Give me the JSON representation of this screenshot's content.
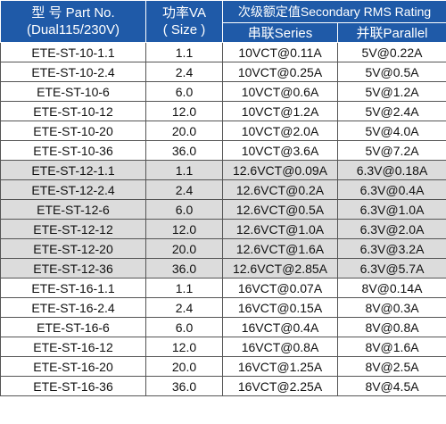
{
  "header": {
    "model_line1": "型 号 Part No.",
    "model_line2": "(Dual115/230V)",
    "power_line1": "功率VA",
    "power_line2": "( Size )",
    "secondary": "次级额定值Secondary RMS Rating",
    "series": "串联Series",
    "parallel": "并联Parallel"
  },
  "rows": [
    {
      "part": "ETE-ST-10-1.1",
      "va": "1.1",
      "series": "10VCT@0.11A",
      "parallel": "5V@0.22A",
      "band": "white"
    },
    {
      "part": "ETE-ST-10-2.4",
      "va": "2.4",
      "series": "10VCT@0.25A",
      "parallel": "5V@0.5A",
      "band": "white"
    },
    {
      "part": "ETE-ST-10-6",
      "va": "6.0",
      "series": "10VCT@0.6A",
      "parallel": "5V@1.2A",
      "band": "white"
    },
    {
      "part": "ETE-ST-10-12",
      "va": "12.0",
      "series": "10VCT@1.2A",
      "parallel": "5V@2.4A",
      "band": "white"
    },
    {
      "part": "ETE-ST-10-20",
      "va": "20.0",
      "series": "10VCT@2.0A",
      "parallel": "5V@4.0A",
      "band": "white"
    },
    {
      "part": "ETE-ST-10-36",
      "va": "36.0",
      "series": "10VCT@3.6A",
      "parallel": "5V@7.2A",
      "band": "white"
    },
    {
      "part": "ETE-ST-12-1.1",
      "va": "1.1",
      "series": "12.6VCT@0.09A",
      "parallel": "6.3V@0.18A",
      "band": "gray"
    },
    {
      "part": "ETE-ST-12-2.4",
      "va": "2.4",
      "series": "12.6VCT@0.2A",
      "parallel": "6.3V@0.4A",
      "band": "gray"
    },
    {
      "part": "ETE-ST-12-6",
      "va": "6.0",
      "series": "12.6VCT@0.5A",
      "parallel": "6.3V@1.0A",
      "band": "gray"
    },
    {
      "part": "ETE-ST-12-12",
      "va": "12.0",
      "series": "12.6VCT@1.0A",
      "parallel": "6.3V@2.0A",
      "band": "gray"
    },
    {
      "part": "ETE-ST-12-20",
      "va": "20.0",
      "series": "12.6VCT@1.6A",
      "parallel": "6.3V@3.2A",
      "band": "gray"
    },
    {
      "part": "ETE-ST-12-36",
      "va": "36.0",
      "series": "12.6VCT@2.85A",
      "parallel": "6.3V@5.7A",
      "band": "gray"
    },
    {
      "part": "ETE-ST-16-1.1",
      "va": "1.1",
      "series": "16VCT@0.07A",
      "parallel": "8V@0.14A",
      "band": "white"
    },
    {
      "part": "ETE-ST-16-2.4",
      "va": "2.4",
      "series": "16VCT@0.15A",
      "parallel": "8V@0.3A",
      "band": "white"
    },
    {
      "part": "ETE-ST-16-6",
      "va": "6.0",
      "series": "16VCT@0.4A",
      "parallel": "8V@0.8A",
      "band": "white"
    },
    {
      "part": "ETE-ST-16-12",
      "va": "12.0",
      "series": "16VCT@0.8A",
      "parallel": "8V@1.6A",
      "band": "white"
    },
    {
      "part": "ETE-ST-16-20",
      "va": "20.0",
      "series": "16VCT@1.25A",
      "parallel": "8V@2.5A",
      "band": "white"
    },
    {
      "part": "ETE-ST-16-36",
      "va": "36.0",
      "series": "16VCT@2.25A",
      "parallel": "8V@4.5A",
      "band": "white"
    }
  ],
  "colors": {
    "header_bg": "#1f5aa8",
    "header_text": "#ffffff",
    "band_white": "#ffffff",
    "band_gray": "#dcdcdc",
    "grid": "#555555"
  }
}
